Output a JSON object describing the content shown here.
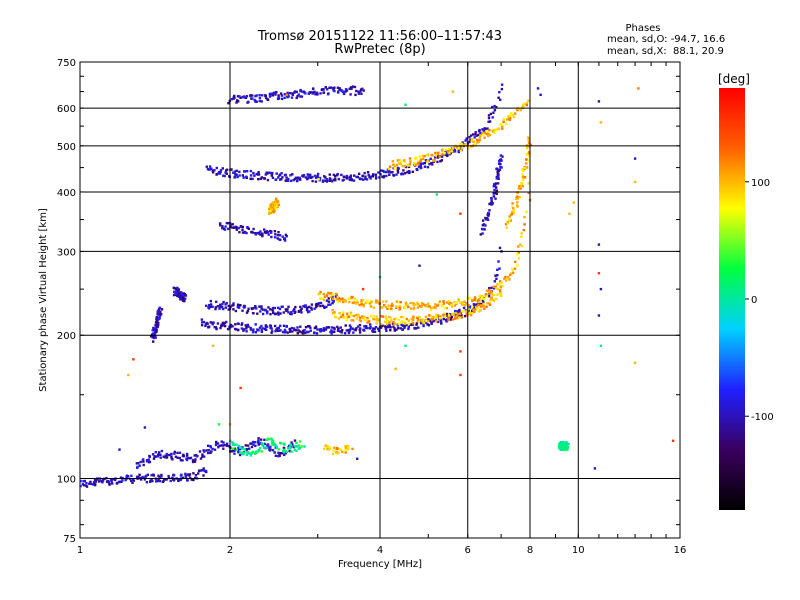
{
  "chart_data": {
    "type": "scatter",
    "title": "Tromsø 20151122 11:56:00–11:57:43",
    "subtitle": "RwPretec (8p)",
    "xlabel": "Frequency [MHz]",
    "ylabel": "Stationary phase Virtual Height [km]",
    "x_scale": "log",
    "y_scale": "log",
    "xlim": [
      1,
      16
    ],
    "ylim": [
      75,
      750
    ],
    "x_ticks": [
      1,
      2,
      4,
      6,
      8,
      10,
      16
    ],
    "y_ticks": [
      75,
      100,
      200,
      300,
      400,
      500,
      600,
      750
    ],
    "grid": true,
    "legend": {
      "title": "Phases",
      "line_o": "mean, sd,O: -94.7, 16.6",
      "line_x": "mean, sd,X:  88.1, 20.9",
      "placement": "top-right"
    },
    "colorbar": {
      "label": "[deg]",
      "range": [
        -180,
        180
      ],
      "ticks": [
        100,
        0,
        -100
      ],
      "colormap": [
        "#000000",
        "#3a0060",
        "#2020ff",
        "#00d0ff",
        "#00ff40",
        "#ffff00",
        "#ff6000",
        "#ff0000"
      ]
    },
    "series": [
      {
        "tone": "blue",
        "phase": -100,
        "segments": [
          {
            "f": [
              1.0,
              1.05,
              1.1,
              1.2,
              1.3,
              1.4,
              1.5,
              1.6,
              1.7,
              1.8
            ],
            "h": [
              98,
              97,
              99,
              99,
              100,
              100,
              100,
              100,
              101,
              104
            ]
          },
          {
            "f": [
              1.75,
              1.85,
              2.0,
              2.2,
              2.4,
              2.7,
              3.0,
              3.5,
              4.0,
              4.5,
              5.0,
              5.5,
              6.0,
              6.4,
              6.7,
              6.9,
              7.0
            ],
            "h": [
              213,
              210,
              209,
              207,
              206,
              205,
              205,
              206,
              207,
              209,
              212,
              218,
              225,
              235,
              250,
              275,
              310
            ]
          },
          {
            "f": [
              1.8,
              2.0,
              2.2,
              2.5,
              2.8,
              3.0,
              3.3
            ],
            "h": [
              232,
              230,
              226,
              225,
              226,
              230,
              240
            ]
          },
          {
            "f": [
              1.9,
              2.1,
              2.3,
              2.6
            ],
            "h": [
              340,
              335,
              328,
              322
            ]
          },
          {
            "f": [
              1.8,
              2.0,
              2.3,
              2.6,
              3.0,
              3.5,
              4.0,
              4.5,
              5.0,
              5.5,
              6.0,
              6.5,
              6.8,
              7.0
            ],
            "h": [
              445,
              438,
              432,
              430,
              428,
              430,
              435,
              445,
              460,
              480,
              510,
              545,
              600,
              660
            ]
          },
          {
            "f": [
              2.0,
              2.3,
              2.6,
              3.0,
              3.4,
              3.7
            ],
            "h": [
              625,
              630,
              640,
              650,
              655,
              650
            ]
          },
          {
            "f": [
              6.4,
              6.6,
              6.8,
              6.9,
              7.0
            ],
            "h": [
              330,
              360,
              400,
              440,
              470
            ]
          },
          {
            "f": [
              1.4,
              1.45
            ],
            "h": [
              195,
              225
            ]
          },
          {
            "f": [
              1.55,
              1.62
            ],
            "h": [
              248,
              238
            ]
          },
          {
            "f": [
              1.3,
              1.45,
              1.7,
              1.9,
              2.1,
              2.3,
              2.5,
              2.7
            ],
            "h": [
              106,
              113,
              110,
              118,
              114,
              120,
              112,
              118
            ]
          }
        ]
      },
      {
        "tone": "yellow",
        "phase": 100,
        "segments": [
          {
            "f": [
              3.0,
              3.5,
              4.0,
              4.5,
              5.0,
              5.5,
              6.0,
              6.5,
              7.0,
              7.4,
              7.7,
              7.9,
              8.0
            ],
            "h": [
              243,
              237,
              232,
              230,
              230,
              232,
              235,
              242,
              255,
              275,
              310,
              360,
              420
            ]
          },
          {
            "f": [
              3.2,
              3.6,
              4.0,
              4.5,
              5.0,
              5.5,
              6.0,
              6.5,
              7.0
            ],
            "h": [
              222,
              218,
              215,
              215,
              216,
              219,
              223,
              232,
              245
            ]
          },
          {
            "f": [
              4.2,
              4.6,
              5.0,
              5.6,
              6.2,
              6.8,
              7.3,
              7.7,
              7.9
            ],
            "h": [
              455,
              462,
              470,
              490,
              510,
              540,
              570,
              600,
              620
            ]
          },
          {
            "f": [
              7.2,
              7.5,
              7.7,
              7.9,
              8.0
            ],
            "h": [
              340,
              380,
              420,
              470,
              520
            ]
          },
          {
            "f": [
              3.1,
              3.3,
              3.5
            ],
            "h": [
              115,
              114,
              116
            ]
          },
          {
            "f": [
              2.4,
              2.5
            ],
            "h": [
              365,
              380
            ]
          }
        ]
      },
      {
        "tone": "cyan",
        "phase": 10,
        "segments": [
          {
            "f": [
              2.0,
              2.2,
              2.4,
              2.6,
              2.8
            ],
            "h": [
              118,
              112,
              120,
              115,
              118
            ]
          },
          {
            "f": [
              9.2,
              9.5
            ],
            "h": [
              117,
              117
            ]
          }
        ]
      }
    ],
    "scatter_points": [
      {
        "f": 11.0,
        "h": 620,
        "phase": -100
      },
      {
        "f": 11.1,
        "h": 560,
        "phase": 100
      },
      {
        "f": 11.0,
        "h": 310,
        "phase": -100
      },
      {
        "f": 11.0,
        "h": 270,
        "phase": 150
      },
      {
        "f": 11.1,
        "h": 250,
        "phase": -100
      },
      {
        "f": 11.0,
        "h": 220,
        "phase": -100
      },
      {
        "f": 11.1,
        "h": 190,
        "phase": 10
      },
      {
        "f": 10.8,
        "h": 105,
        "phase": -100
      },
      {
        "f": 13.0,
        "h": 470,
        "phase": -100
      },
      {
        "f": 13.0,
        "h": 420,
        "phase": 100
      },
      {
        "f": 13.2,
        "h": 660,
        "phase": 120
      },
      {
        "f": 13.0,
        "h": 175,
        "phase": 100
      },
      {
        "f": 15.5,
        "h": 120,
        "phase": 150
      },
      {
        "f": 9.8,
        "h": 380,
        "phase": 100
      },
      {
        "f": 9.6,
        "h": 360,
        "phase": 100
      },
      {
        "f": 8.3,
        "h": 660,
        "phase": -100
      },
      {
        "f": 8.4,
        "h": 640,
        "phase": -100
      },
      {
        "f": 5.8,
        "h": 360,
        "phase": 150
      },
      {
        "f": 5.8,
        "h": 185,
        "phase": 150
      },
      {
        "f": 5.8,
        "h": 165,
        "phase": 150
      },
      {
        "f": 5.6,
        "h": 650,
        "phase": 100
      },
      {
        "f": 3.7,
        "h": 250,
        "phase": 150
      },
      {
        "f": 2.0,
        "h": 130,
        "phase": 100
      },
      {
        "f": 1.9,
        "h": 130,
        "phase": 30
      },
      {
        "f": 2.1,
        "h": 155,
        "phase": 150
      },
      {
        "f": 1.25,
        "h": 165,
        "phase": 100
      },
      {
        "f": 1.28,
        "h": 178,
        "phase": 150
      },
      {
        "f": 1.85,
        "h": 190,
        "phase": 100
      },
      {
        "f": 4.5,
        "h": 190,
        "phase": 10
      },
      {
        "f": 4.3,
        "h": 170,
        "phase": 100
      },
      {
        "f": 1.35,
        "h": 128,
        "phase": -100
      },
      {
        "f": 1.2,
        "h": 115,
        "phase": -100
      },
      {
        "f": 3.6,
        "h": 110,
        "phase": -100
      },
      {
        "f": 4.0,
        "h": 265,
        "phase": 10
      },
      {
        "f": 4.8,
        "h": 280,
        "phase": -100
      },
      {
        "f": 5.2,
        "h": 395,
        "phase": 10
      },
      {
        "f": 4.5,
        "h": 610,
        "phase": 10
      },
      {
        "f": 2.6,
        "h": 640,
        "phase": 120
      }
    ]
  }
}
